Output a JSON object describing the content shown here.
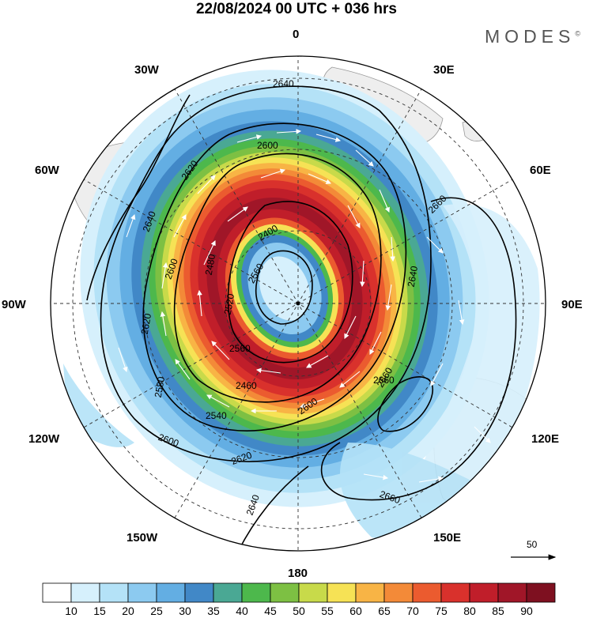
{
  "header": {
    "title": "22/08/2024  00 UTC  + 036 hrs",
    "brand": "MODES",
    "brand_mark": "©"
  },
  "map": {
    "projection": "south-polar-stereographic",
    "longitude_labels": [
      "0",
      "30E",
      "60E",
      "90E",
      "120E",
      "150E",
      "180",
      "150W",
      "120W",
      "90W",
      "60W",
      "30W"
    ],
    "contour_labels": [
      "2640",
      "2600",
      "2620",
      "2640",
      "2660",
      "2600",
      "2400",
      "2560",
      "2480",
      "2520",
      "2640",
      "2620",
      "2660",
      "2580",
      "2460",
      "2540",
      "2600",
      "2660",
      "2620",
      "2600",
      "2640",
      "2660",
      "2560"
    ],
    "reference_vector": {
      "label": "50"
    }
  },
  "colorbar": {
    "ticks": [
      "10",
      "15",
      "20",
      "25",
      "30",
      "35",
      "40",
      "45",
      "50",
      "55",
      "60",
      "65",
      "70",
      "75",
      "80",
      "85",
      "90"
    ],
    "colors": [
      "#ffffff",
      "#d6f0fc",
      "#b4e2f7",
      "#8ccaf0",
      "#63aee3",
      "#4188c7",
      "#4aa894",
      "#4db84c",
      "#7dc043",
      "#c8da4a",
      "#f6e255",
      "#f8b445",
      "#f38a38",
      "#eb5b2f",
      "#d9312c",
      "#c01e2a",
      "#a01628",
      "#7e1020"
    ]
  },
  "colors": {
    "land": "#eeeeee",
    "coast": "#9a9a9a",
    "contour": "#000000",
    "wind_arrow": "#ffffff"
  }
}
